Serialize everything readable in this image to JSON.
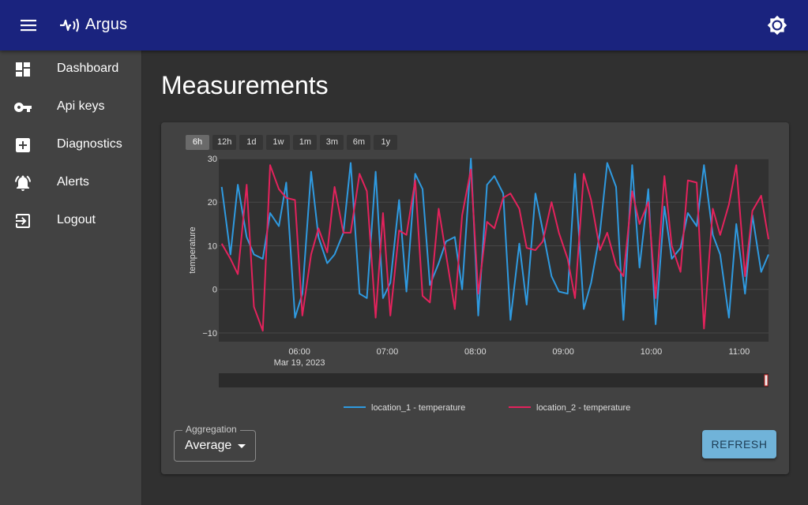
{
  "header": {
    "title": "Argus",
    "menu_icon": "menu-icon",
    "logo_icon": "pulse-logo-icon",
    "theme_icon": "brightness-icon",
    "bg_color": "#1a237e"
  },
  "sidebar": {
    "items": [
      {
        "label": "Dashboard",
        "icon": "dashboard-icon"
      },
      {
        "label": "Api keys",
        "icon": "key-icon"
      },
      {
        "label": "Diagnostics",
        "icon": "medical-plus-icon"
      },
      {
        "label": "Alerts",
        "icon": "bell-alert-icon"
      },
      {
        "label": "Logout",
        "icon": "logout-icon"
      }
    ]
  },
  "main": {
    "title": "Measurements",
    "range_buttons": [
      "6h",
      "12h",
      "1d",
      "1w",
      "1m",
      "3m",
      "6m",
      "1y"
    ],
    "active_range": "6h",
    "aggregation": {
      "label": "Aggregation",
      "value": "Average"
    },
    "refresh_label": "REFRESH"
  },
  "chart_data": {
    "type": "line",
    "title": "",
    "xlabel": "",
    "ylabel": "temperature",
    "ylim": [
      -12,
      30
    ],
    "yticks": [
      "30",
      "20",
      "10",
      "0",
      "−10"
    ],
    "ytick_values": [
      30,
      20,
      10,
      0,
      -10
    ],
    "x_time_range": [
      "05:05",
      "11:00"
    ],
    "xticks": [
      {
        "time": "06:00",
        "label": "06:00",
        "sublabel": "Mar 19, 2023"
      },
      {
        "time": "07:00",
        "label": "07:00"
      },
      {
        "time": "08:00",
        "label": "08:00"
      },
      {
        "time": "09:00",
        "label": "09:00"
      },
      {
        "time": "10:00",
        "label": "10:00"
      },
      {
        "time": "11:00",
        "label": "11:00"
      }
    ],
    "grid": true,
    "legend": "bottom-center",
    "series": [
      {
        "name": "location_1 - temperature",
        "color": "#2f9ae0",
        "points": [
          [
            "05:07",
            23.5
          ],
          [
            "05:13",
            8
          ],
          [
            "05:18",
            24
          ],
          [
            "05:24",
            12
          ],
          [
            "05:29",
            8
          ],
          [
            "05:35",
            7
          ],
          [
            "05:40",
            17.5
          ],
          [
            "05:46",
            14.5
          ],
          [
            "05:51",
            24.5
          ],
          [
            "05:57",
            -6.5
          ],
          [
            "06:02",
            -1
          ],
          [
            "06:08",
            27
          ],
          [
            "06:13",
            12
          ],
          [
            "06:19",
            6
          ],
          [
            "06:24",
            8
          ],
          [
            "06:30",
            13
          ],
          [
            "06:35",
            29
          ],
          [
            "06:41",
            -1
          ],
          [
            "06:46",
            -2
          ],
          [
            "06:52",
            27
          ],
          [
            "06:57",
            -2
          ],
          [
            "07:02",
            1.5
          ],
          [
            "07:08",
            20.5
          ],
          [
            "07:13",
            -0.5
          ],
          [
            "07:19",
            26.5
          ],
          [
            "07:24",
            23
          ],
          [
            "07:29",
            1
          ],
          [
            "07:35",
            6
          ],
          [
            "07:40",
            11
          ],
          [
            "07:46",
            12
          ],
          [
            "07:51",
            0
          ],
          [
            "07:57",
            30
          ],
          [
            "08:02",
            -6
          ],
          [
            "08:08",
            24
          ],
          [
            "08:13",
            26
          ],
          [
            "08:19",
            22
          ],
          [
            "08:24",
            -7
          ],
          [
            "08:30",
            10.5
          ],
          [
            "08:35",
            -3.5
          ],
          [
            "08:41",
            22
          ],
          [
            "08:46",
            13.5
          ],
          [
            "08:52",
            3
          ],
          [
            "08:57",
            -0.5
          ],
          [
            "09:03",
            -1
          ],
          [
            "09:08",
            26.5
          ],
          [
            "09:14",
            -4.5
          ],
          [
            "09:19",
            1.5
          ],
          [
            "09:25",
            13
          ],
          [
            "09:30",
            29
          ],
          [
            "09:36",
            23.5
          ],
          [
            "09:41",
            -7
          ],
          [
            "09:47",
            28.5
          ],
          [
            "09:52",
            5
          ],
          [
            "09:58",
            23
          ],
          [
            "10:03",
            -8
          ],
          [
            "10:09",
            19
          ],
          [
            "10:14",
            7
          ],
          [
            "10:20",
            9.5
          ],
          [
            "10:25",
            17.5
          ],
          [
            "10:31",
            14.5
          ],
          [
            "10:36",
            28.5
          ],
          [
            "10:42",
            12.5
          ],
          [
            "10:47",
            8
          ],
          [
            "10:53",
            -6.5
          ],
          [
            "10:58",
            15
          ],
          [
            "11:04",
            -1
          ],
          [
            "11:09",
            17
          ],
          [
            "11:15",
            4
          ],
          [
            "11:20",
            8
          ]
        ]
      },
      {
        "name": "location_2 - temperature",
        "color": "#e3225c",
        "points": [
          [
            "05:07",
            10.5
          ],
          [
            "05:13",
            7
          ],
          [
            "05:18",
            3.5
          ],
          [
            "05:24",
            24
          ],
          [
            "05:29",
            -4
          ],
          [
            "05:35",
            -9.5
          ],
          [
            "05:40",
            28.5
          ],
          [
            "05:46",
            23
          ],
          [
            "05:51",
            21
          ],
          [
            "05:57",
            20.5
          ],
          [
            "06:02",
            -6
          ],
          [
            "06:08",
            8
          ],
          [
            "06:13",
            14
          ],
          [
            "06:19",
            8.5
          ],
          [
            "06:24",
            23.5
          ],
          [
            "06:30",
            13
          ],
          [
            "06:35",
            13
          ],
          [
            "06:41",
            26.5
          ],
          [
            "06:46",
            22.5
          ],
          [
            "06:52",
            -6.5
          ],
          [
            "06:57",
            17.5
          ],
          [
            "07:02",
            -6
          ],
          [
            "07:08",
            13.5
          ],
          [
            "07:13",
            12.5
          ],
          [
            "07:19",
            25
          ],
          [
            "07:24",
            -1.5
          ],
          [
            "07:29",
            -3
          ],
          [
            "07:35",
            18.5
          ],
          [
            "07:40",
            8
          ],
          [
            "07:46",
            -4.5
          ],
          [
            "07:51",
            17
          ],
          [
            "07:57",
            27.5
          ],
          [
            "08:02",
            -1
          ],
          [
            "08:08",
            15.5
          ],
          [
            "08:13",
            14
          ],
          [
            "08:19",
            21
          ],
          [
            "08:24",
            22
          ],
          [
            "08:30",
            18.5
          ],
          [
            "08:35",
            9.5
          ],
          [
            "08:41",
            9
          ],
          [
            "08:46",
            11
          ],
          [
            "08:52",
            20
          ],
          [
            "08:57",
            13
          ],
          [
            "09:03",
            7
          ],
          [
            "09:08",
            -2
          ],
          [
            "09:14",
            26.5
          ],
          [
            "09:19",
            20.5
          ],
          [
            "09:25",
            9
          ],
          [
            "09:30",
            13
          ],
          [
            "09:36",
            5.5
          ],
          [
            "09:41",
            3
          ],
          [
            "09:47",
            22.5
          ],
          [
            "09:52",
            15
          ],
          [
            "09:58",
            20
          ],
          [
            "10:03",
            -2
          ],
          [
            "10:09",
            26
          ],
          [
            "10:14",
            10
          ],
          [
            "10:20",
            4
          ],
          [
            "10:25",
            25
          ],
          [
            "10:31",
            24.5
          ],
          [
            "10:36",
            -9
          ],
          [
            "10:42",
            18.5
          ],
          [
            "10:47",
            12.5
          ],
          [
            "10:53",
            19.5
          ],
          [
            "10:58",
            28.5
          ],
          [
            "11:04",
            3
          ],
          [
            "11:09",
            18
          ],
          [
            "11:15",
            21.5
          ],
          [
            "11:20",
            11.5
          ]
        ]
      }
    ]
  }
}
